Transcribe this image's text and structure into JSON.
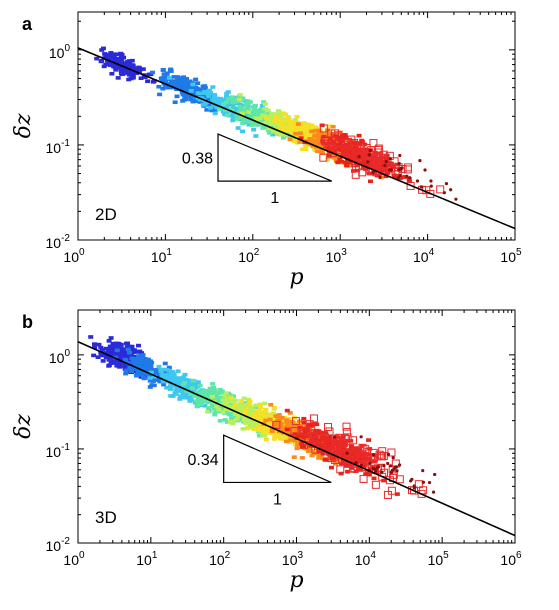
{
  "chart_data": [
    {
      "type": "scatter",
      "panel_label": "a",
      "dimension_label": "2D",
      "xlabel": "p",
      "ylabel": "δz",
      "x_scale": "log",
      "y_scale": "log",
      "xlim": [
        1,
        100000
      ],
      "ylim": [
        0.01,
        2.5
      ],
      "x_ticks": [
        {
          "base": "10",
          "exp": "0",
          "value": 1
        },
        {
          "base": "10",
          "exp": "1",
          "value": 10
        },
        {
          "base": "10",
          "exp": "2",
          "value": 100
        },
        {
          "base": "10",
          "exp": "3",
          "value": 1000
        },
        {
          "base": "10",
          "exp": "4",
          "value": 10000
        },
        {
          "base": "10",
          "exp": "5",
          "value": 100000
        }
      ],
      "y_ticks": [
        {
          "base": "10",
          "exp": "-2",
          "value": 0.01
        },
        {
          "base": "10",
          "exp": "-1",
          "value": 0.1
        },
        {
          "base": "10",
          "exp": "0",
          "value": 1
        }
      ],
      "fit_line": {
        "slope": -0.38,
        "x": [
          1,
          100000
        ],
        "y": [
          1.05,
          0.0132
        ]
      },
      "slope_triangle": {
        "label_vertical": "0.38",
        "label_horizontal": "1",
        "x_range": [
          40,
          800
        ],
        "y_top": 0.13
      },
      "clusters": [
        {
          "color": "#2a2ad8",
          "x_center": 3.4,
          "x_spread": 0.12,
          "y_center": 0.68,
          "y_spread": 0.05,
          "n": 160
        },
        {
          "color": "#1f7ae8",
          "x_center": 18,
          "x_spread": 0.17,
          "y_center": 0.38,
          "y_spread": 0.06,
          "n": 200
        },
        {
          "color": "#3ec7ef",
          "x_center": 55,
          "x_spread": 0.2,
          "y_center": 0.25,
          "y_spread": 0.06,
          "n": 200
        },
        {
          "color": "#5ee6a8",
          "x_center": 130,
          "x_spread": 0.2,
          "y_center": 0.19,
          "y_spread": 0.06,
          "n": 200
        },
        {
          "color": "#b7f05a",
          "x_center": 260,
          "x_spread": 0.2,
          "y_center": 0.15,
          "y_spread": 0.06,
          "n": 200
        },
        {
          "color": "#f6e026",
          "x_center": 500,
          "x_spread": 0.2,
          "y_center": 0.12,
          "y_spread": 0.06,
          "n": 200
        },
        {
          "color": "#fb8a1d",
          "x_center": 900,
          "x_spread": 0.2,
          "y_center": 0.095,
          "y_spread": 0.06,
          "n": 220
        },
        {
          "color": "#e8231c",
          "x_center": 1600,
          "x_spread": 0.22,
          "y_center": 0.078,
          "y_spread": 0.07,
          "n": 220
        },
        {
          "color": "#e82b2b",
          "x_center": 2200,
          "x_spread": 0.3,
          "y_center": 0.07,
          "y_spread": 0.08,
          "n": 90,
          "marker": "square"
        },
        {
          "color": "#8a0f0f",
          "x_center": 6000,
          "x_spread": 0.25,
          "y_center": 0.048,
          "y_spread": 0.07,
          "n": 30
        }
      ]
    },
    {
      "type": "scatter",
      "panel_label": "b",
      "dimension_label": "3D",
      "xlabel": "p",
      "ylabel": "δz",
      "x_scale": "log",
      "y_scale": "log",
      "xlim": [
        1,
        1000000
      ],
      "ylim": [
        0.01,
        3
      ],
      "x_ticks": [
        {
          "base": "10",
          "exp": "0",
          "value": 1
        },
        {
          "base": "10",
          "exp": "1",
          "value": 10
        },
        {
          "base": "10",
          "exp": "2",
          "value": 100
        },
        {
          "base": "10",
          "exp": "3",
          "value": 1000
        },
        {
          "base": "10",
          "exp": "4",
          "value": 10000
        },
        {
          "base": "10",
          "exp": "5",
          "value": 100000
        },
        {
          "base": "10",
          "exp": "6",
          "value": 1000000
        }
      ],
      "y_ticks": [
        {
          "base": "10",
          "exp": "-2",
          "value": 0.01
        },
        {
          "base": "10",
          "exp": "-1",
          "value": 0.1
        },
        {
          "base": "10",
          "exp": "0",
          "value": 1
        }
      ],
      "fit_line": {
        "slope": -0.34,
        "x": [
          1,
          1000000
        ],
        "y": [
          1.38,
          0.012
        ]
      },
      "slope_triangle": {
        "label_vertical": "0.34",
        "label_horizontal": "1",
        "x_range": [
          100,
          3000
        ],
        "y_top": 0.14
      },
      "clusters": [
        {
          "color": "#2a2ad8",
          "x_center": 4,
          "x_spread": 0.18,
          "y_center": 0.95,
          "y_spread": 0.06,
          "n": 200
        },
        {
          "color": "#1f7ae8",
          "x_center": 9,
          "x_spread": 0.15,
          "y_center": 0.7,
          "y_spread": 0.06,
          "n": 150
        },
        {
          "color": "#3ec7ef",
          "x_center": 30,
          "x_spread": 0.2,
          "y_center": 0.45,
          "y_spread": 0.06,
          "n": 200
        },
        {
          "color": "#5ee6a8",
          "x_center": 100,
          "x_spread": 0.22,
          "y_center": 0.3,
          "y_spread": 0.07,
          "n": 220
        },
        {
          "color": "#b7f05a",
          "x_center": 250,
          "x_spread": 0.22,
          "y_center": 0.22,
          "y_spread": 0.07,
          "n": 220
        },
        {
          "color": "#f6e026",
          "x_center": 600,
          "x_spread": 0.22,
          "y_center": 0.17,
          "y_spread": 0.07,
          "n": 220
        },
        {
          "color": "#fb8a1d",
          "x_center": 1400,
          "x_spread": 0.24,
          "y_center": 0.13,
          "y_spread": 0.07,
          "n": 240
        },
        {
          "color": "#e8231c",
          "x_center": 3500,
          "x_spread": 0.28,
          "y_center": 0.1,
          "y_spread": 0.08,
          "n": 240
        },
        {
          "color": "#e82b2b",
          "x_center": 6000,
          "x_spread": 0.4,
          "y_center": 0.085,
          "y_spread": 0.1,
          "n": 110,
          "marker": "square"
        },
        {
          "color": "#8a0f0f",
          "x_center": 20000,
          "x_spread": 0.35,
          "y_center": 0.06,
          "y_spread": 0.08,
          "n": 35
        }
      ]
    }
  ]
}
